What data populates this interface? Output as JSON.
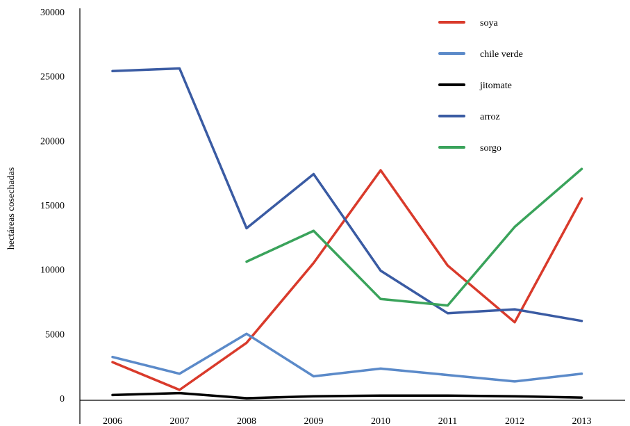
{
  "chart_data": {
    "type": "line",
    "title": "",
    "xlabel": "",
    "ylabel": "hectáreas cosechadas",
    "ylim": [
      0,
      30000
    ],
    "y_ticks": [
      "0",
      "5000",
      "10000",
      "15000",
      "20000",
      "25000",
      "30000"
    ],
    "y_tick_values": [
      0,
      5000,
      10000,
      15000,
      20000,
      25000,
      30000
    ],
    "x_ticks": [
      "2006",
      "2007",
      "2008",
      "2009",
      "2010",
      "2011",
      "2012",
      "2013"
    ],
    "grid": false,
    "legend_position": "top-right",
    "series": [
      {
        "name": "soya",
        "color": "#d93a2b",
        "points": [
          {
            "x": 2006,
            "y": 2800
          },
          {
            "x": 2007,
            "y": 650
          },
          {
            "x": 2008,
            "y": 4300
          },
          {
            "x": 2009,
            "y": 10500
          },
          {
            "x": 2010,
            "y": 17700
          },
          {
            "x": 2011,
            "y": 10300
          },
          {
            "x": 2012,
            "y": 5900
          },
          {
            "x": 2013,
            "y": 15500
          }
        ]
      },
      {
        "name": "chile verde",
        "color": "#5b8ac9",
        "points": [
          {
            "x": 2006,
            "y": 3200
          },
          {
            "x": 2007,
            "y": 1900
          },
          {
            "x": 2008,
            "y": 5000
          },
          {
            "x": 2009,
            "y": 1700
          },
          {
            "x": 2010,
            "y": 2300
          },
          {
            "x": 2011,
            "y": 1800
          },
          {
            "x": 2012,
            "y": 1300
          },
          {
            "x": 2013,
            "y": 1900
          }
        ]
      },
      {
        "name": "jitomate",
        "color": "#000000",
        "points": [
          {
            "x": 2006,
            "y": 250
          },
          {
            "x": 2007,
            "y": 400
          },
          {
            "x": 2008,
            "y": 0
          },
          {
            "x": 2009,
            "y": 150
          },
          {
            "x": 2010,
            "y": 200
          },
          {
            "x": 2011,
            "y": 200
          },
          {
            "x": 2012,
            "y": 150
          },
          {
            "x": 2013,
            "y": 50
          }
        ]
      },
      {
        "name": "arroz",
        "color": "#3a5ba3",
        "points": [
          {
            "x": 2006,
            "y": 25400
          },
          {
            "x": 2007,
            "y": 25600
          },
          {
            "x": 2008,
            "y": 13200
          },
          {
            "x": 2009,
            "y": 17400
          },
          {
            "x": 2010,
            "y": 9900
          },
          {
            "x": 2011,
            "y": 6600
          },
          {
            "x": 2012,
            "y": 6900
          },
          {
            "x": 2013,
            "y": 6000
          }
        ]
      },
      {
        "name": "sorgo",
        "color": "#3aa35b",
        "points": [
          {
            "x": 2008,
            "y": 10600
          },
          {
            "x": 2009,
            "y": 13000
          },
          {
            "x": 2010,
            "y": 7700
          },
          {
            "x": 2011,
            "y": 7200
          },
          {
            "x": 2012,
            "y": 13300
          },
          {
            "x": 2013,
            "y": 17800
          }
        ]
      }
    ]
  }
}
